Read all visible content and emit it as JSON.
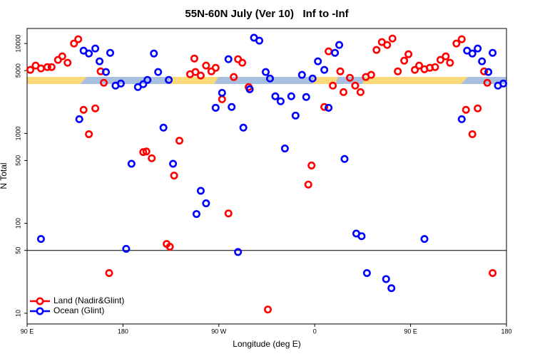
{
  "chart_data": {
    "type": "scatter",
    "title": "55N-60N July (Ver 10)   Inf to -Inf",
    "x_label": "Longitude (deg E)",
    "y_label": "N Total",
    "y_log": true,
    "xlim": [
      90,
      540
    ],
    "ylim": [
      7.6,
      14700
    ],
    "xticks": [
      {
        "value": 90,
        "label": "90 E"
      },
      {
        "value": 180,
        "label": "180"
      },
      {
        "value": 270,
        "label": "90 W"
      },
      {
        "value": 360,
        "label": "0"
      },
      {
        "value": 450,
        "label": "90 E"
      },
      {
        "value": 540,
        "label": "180"
      }
    ],
    "yticks": [
      10,
      50,
      100,
      500,
      1000,
      5000,
      10000
    ],
    "hline": 50,
    "legend": "lower left",
    "series": [
      {
        "name": "Land (Nadir&Glint)",
        "color": "#ff0000",
        "x": [
          93,
          98,
          103,
          109,
          113,
          119,
          123,
          128,
          134,
          138,
          143,
          148,
          154,
          159,
          162,
          167,
          199,
          202,
          207,
          228,
          233,
          221,
          224,
          243,
          247,
          248,
          253,
          258,
          263,
          267,
          273,
          279,
          284,
          288,
          292,
          298,
          316,
          354,
          357,
          369,
          373,
          377,
          384,
          387,
          393,
          398,
          403,
          408,
          413,
          418,
          423,
          428,
          433,
          438,
          444,
          448,
          454,
          458,
          463,
          468,
          473,
          478,
          483,
          487,
          493,
          498,
          502,
          508,
          513,
          519,
          522,
          527
        ],
        "values": [
          5090,
          5680,
          5280,
          5470,
          5470,
          6570,
          7200,
          6110,
          10000,
          11160,
          1830,
          980,
          1900,
          4900,
          3660,
          28,
          620,
          630,
          530,
          340,
          830,
          59,
          55,
          4560,
          6810,
          4820,
          4400,
          5680,
          4900,
          5370,
          2400,
          129,
          4240,
          6690,
          6110,
          3280,
          11,
          270,
          440,
          1970,
          8180,
          3400,
          4900,
          2880,
          4160,
          3400,
          2880,
          4240,
          4480,
          8480,
          10370,
          9640,
          11370,
          4900,
          6450,
          7600,
          5090,
          5680,
          5180,
          5370,
          5470,
          6570,
          7200,
          6110,
          10000,
          11160,
          1830,
          980,
          1900,
          4900,
          3660,
          28
        ]
      },
      {
        "name": "Ocean (Glint)",
        "color": "#0000ff",
        "x": [
          103,
          139,
          143,
          148,
          154,
          158,
          164,
          168,
          173,
          178,
          183,
          188,
          194,
          199,
          203,
          209,
          213,
          218,
          223,
          227,
          249,
          253,
          258,
          267,
          273,
          279,
          282,
          288,
          293,
          299,
          303,
          308,
          314,
          318,
          323,
          328,
          332,
          338,
          342,
          348,
          352,
          358,
          363,
          369,
          373,
          379,
          383,
          388,
          399,
          404,
          409,
          427,
          432,
          463,
          498,
          503,
          508,
          513,
          517,
          523,
          527,
          532,
          537
        ],
        "values": [
          67,
          1440,
          8330,
          7740,
          8800,
          6340,
          4820,
          7880,
          3400,
          3590,
          52,
          460,
          3280,
          3530,
          3940,
          7740,
          4820,
          1160,
          3940,
          460,
          127,
          230,
          167,
          1930,
          2830,
          6690,
          1970,
          48,
          1160,
          3100,
          11600,
          10760,
          4820,
          4080,
          2590,
          2280,
          680,
          2590,
          1580,
          4480,
          2540,
          4080,
          6340,
          5090,
          1930,
          7880,
          9640,
          520,
          77,
          72,
          28,
          24,
          19,
          67,
          1440,
          8330,
          7740,
          8800,
          6340,
          4820,
          7880,
          3400,
          3590
        ]
      }
    ]
  }
}
